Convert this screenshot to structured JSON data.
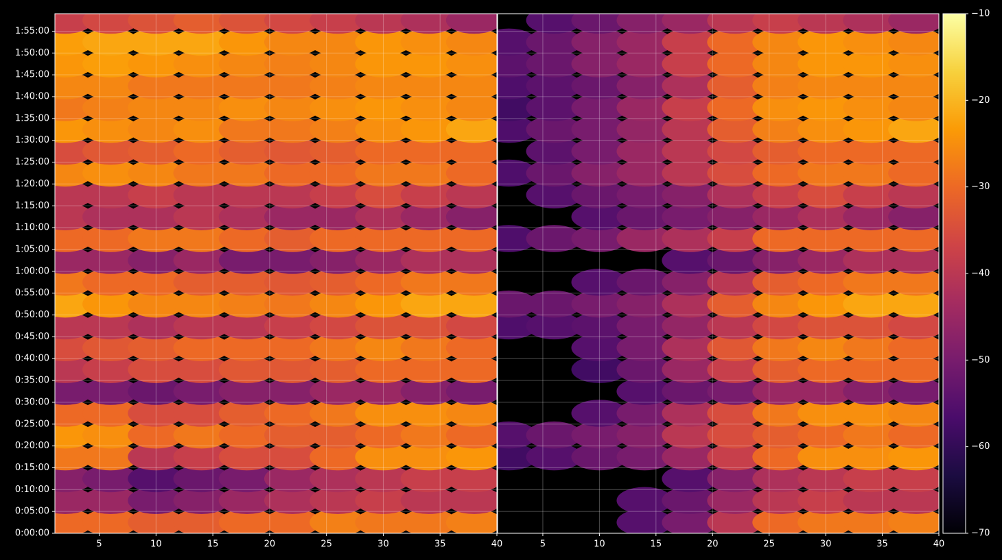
{
  "chart_data": [
    {
      "type": "heatmap",
      "colormap": "inferno",
      "grid": true,
      "clim": [
        -70,
        -10
      ],
      "cticks": [
        {
          "value": -10,
          "label": "−10"
        },
        {
          "value": -20,
          "label": "−20"
        },
        {
          "value": -30,
          "label": "−30"
        },
        {
          "value": -40,
          "label": "−40"
        },
        {
          "value": -50,
          "label": "−50"
        },
        {
          "value": -60,
          "label": "−60"
        },
        {
          "value": -70,
          "label": "−70"
        }
      ],
      "x": [
        2,
        6,
        10,
        14,
        18,
        22,
        26,
        30,
        34,
        38
      ],
      "y": [
        150,
        450,
        750,
        1050,
        1350,
        1650,
        1950,
        2250,
        2550,
        2850,
        3150,
        3450,
        3750,
        4050,
        4350,
        4650,
        4950,
        5250,
        5550,
        5850,
        6150,
        6450,
        6750,
        7050
      ],
      "xlim": [
        1.1,
        40
      ],
      "xticks": [
        5,
        10,
        15,
        20,
        25,
        30,
        35,
        40
      ],
      "ylim": [
        0,
        7140
      ],
      "yticks": [
        {
          "value": 0,
          "label": "0:00:00"
        },
        {
          "value": 300,
          "label": "0:05:00"
        },
        {
          "value": 600,
          "label": "0:10:00"
        },
        {
          "value": 900,
          "label": "0:15:00"
        },
        {
          "value": 1200,
          "label": "0:20:00"
        },
        {
          "value": 1500,
          "label": "0:25:00"
        },
        {
          "value": 1800,
          "label": "0:30:00"
        },
        {
          "value": 2100,
          "label": "0:35:00"
        },
        {
          "value": 2400,
          "label": "0:40:00"
        },
        {
          "value": 2700,
          "label": "0:45:00"
        },
        {
          "value": 3000,
          "label": "0:50:00"
        },
        {
          "value": 3300,
          "label": "0:55:00"
        },
        {
          "value": 3600,
          "label": "1:00:00"
        },
        {
          "value": 3900,
          "label": "1:05:00"
        },
        {
          "value": 4200,
          "label": "1:10:00"
        },
        {
          "value": 4500,
          "label": "1:15:00"
        },
        {
          "value": 4800,
          "label": "1:20:00"
        },
        {
          "value": 5100,
          "label": "1:25:00"
        },
        {
          "value": 5400,
          "label": "1:30:00"
        },
        {
          "value": 5700,
          "label": "1:35:00"
        },
        {
          "value": 6000,
          "label": "1:40:00"
        },
        {
          "value": 6300,
          "label": "1:45:00"
        },
        {
          "value": 6600,
          "label": "1:50:00"
        },
        {
          "value": 6900,
          "label": "1:55:00"
        }
      ],
      "values": [
        [
          -30,
          -30,
          -32,
          -32,
          -30,
          -30,
          -27,
          -28,
          -28,
          -27
        ],
        [
          -45,
          -45,
          -50,
          -48,
          -45,
          -42,
          -40,
          -38,
          -40,
          -40
        ],
        [
          -48,
          -50,
          -55,
          -52,
          -50,
          -45,
          -42,
          -40,
          -38,
          -38
        ],
        [
          -28,
          -28,
          -40,
          -38,
          -35,
          -35,
          -30,
          -25,
          -25,
          -24
        ],
        [
          -24,
          -25,
          -30,
          -28,
          -30,
          -32,
          -32,
          -30,
          -28,
          -30
        ],
        [
          -30,
          -30,
          -35,
          -35,
          -32,
          -30,
          -28,
          -25,
          -25,
          -26
        ],
        [
          -50,
          -50,
          -52,
          -50,
          -48,
          -48,
          -45,
          -45,
          -48,
          -50
        ],
        [
          -40,
          -38,
          -35,
          -35,
          -33,
          -33,
          -32,
          -30,
          -30,
          -30
        ],
        [
          -35,
          -33,
          -32,
          -30,
          -30,
          -30,
          -28,
          -26,
          -28,
          -30
        ],
        [
          -40,
          -40,
          -42,
          -40,
          -40,
          -38,
          -36,
          -34,
          -34,
          -36
        ],
        [
          -22,
          -24,
          -26,
          -26,
          -27,
          -28,
          -26,
          -24,
          -22,
          -22
        ],
        [
          -28,
          -30,
          -30,
          -32,
          -32,
          -33,
          -32,
          -30,
          -28,
          -28
        ],
        [
          -45,
          -45,
          -48,
          -45,
          -50,
          -50,
          -48,
          -45,
          -42,
          -42
        ],
        [
          -30,
          -30,
          -28,
          -28,
          -30,
          -32,
          -30,
          -30,
          -30,
          -30
        ],
        [
          -40,
          -42,
          -42,
          -40,
          -42,
          -45,
          -45,
          -42,
          -45,
          -48
        ],
        [
          -40,
          -40,
          -38,
          -40,
          -40,
          -40,
          -38,
          -35,
          -38,
          -40
        ],
        [
          -26,
          -25,
          -26,
          -28,
          -28,
          -30,
          -30,
          -28,
          -28,
          -30
        ],
        [
          -35,
          -33,
          -32,
          -30,
          -32,
          -33,
          -32,
          -30,
          -30,
          -30
        ],
        [
          -24,
          -25,
          -26,
          -25,
          -28,
          -28,
          -27,
          -25,
          -24,
          -22
        ],
        [
          -28,
          -27,
          -26,
          -26,
          -25,
          -26,
          -25,
          -24,
          -25,
          -26
        ],
        [
          -26,
          -26,
          -28,
          -28,
          -28,
          -28,
          -27,
          -26,
          -26,
          -26
        ],
        [
          -24,
          -23,
          -24,
          -25,
          -26,
          -27,
          -26,
          -24,
          -24,
          -25
        ],
        [
          -23,
          -22,
          -22,
          -22,
          -24,
          -26,
          -26,
          -24,
          -25,
          -26
        ],
        [
          -38,
          -36,
          -34,
          -32,
          -34,
          -36,
          -38,
          -40,
          -42,
          -45
        ]
      ]
    },
    {
      "type": "heatmap",
      "grid": true,
      "x": [
        2,
        6,
        10,
        14,
        18,
        22,
        26,
        30,
        34,
        38
      ],
      "xlim": [
        1,
        40
      ],
      "xticks": [
        5,
        10,
        15,
        20,
        25,
        30,
        35,
        40
      ],
      "values": [
        [
          null,
          null,
          null,
          -55,
          -50,
          -40,
          -30,
          -28,
          -28,
          -27
        ],
        [
          null,
          null,
          null,
          -55,
          -52,
          -45,
          -40,
          -38,
          -40,
          -40
        ],
        [
          null,
          null,
          null,
          null,
          -55,
          -48,
          -42,
          -40,
          -38,
          -38
        ],
        [
          -58,
          -55,
          -52,
          -50,
          -45,
          -38,
          -30,
          -25,
          -25,
          -24
        ],
        [
          -55,
          -52,
          -50,
          -48,
          -40,
          -35,
          -32,
          -30,
          -28,
          -30
        ],
        [
          null,
          null,
          -55,
          -50,
          -42,
          -35,
          -28,
          -25,
          -25,
          -26
        ],
        [
          null,
          null,
          null,
          -55,
          -52,
          -50,
          -45,
          -45,
          -48,
          -50
        ],
        [
          null,
          null,
          -58,
          -52,
          -45,
          -38,
          -32,
          -30,
          -30,
          -30
        ],
        [
          null,
          null,
          -55,
          -50,
          -42,
          -33,
          -28,
          -26,
          -28,
          -30
        ],
        [
          -56,
          -55,
          -54,
          -50,
          -46,
          -40,
          -36,
          -34,
          -34,
          -36
        ],
        [
          -52,
          -52,
          -50,
          -48,
          -42,
          -32,
          -26,
          -24,
          -22,
          -22
        ],
        [
          null,
          null,
          -55,
          -52,
          -48,
          -40,
          -32,
          -30,
          -28,
          -28
        ],
        [
          null,
          null,
          null,
          null,
          -55,
          -52,
          -48,
          -45,
          -42,
          -42
        ],
        [
          -56,
          -52,
          -50,
          -45,
          -42,
          -38,
          -30,
          -30,
          -30,
          -30
        ],
        [
          null,
          null,
          -55,
          -52,
          -50,
          -48,
          -45,
          -42,
          -45,
          -48
        ],
        [
          null,
          -55,
          -52,
          -50,
          -48,
          -42,
          -38,
          -35,
          -38,
          -40
        ],
        [
          -56,
          -52,
          -48,
          -45,
          -40,
          -35,
          -30,
          -28,
          -28,
          -30
        ],
        [
          null,
          -54,
          -50,
          -45,
          -40,
          -36,
          -32,
          -30,
          -30,
          -30
        ],
        [
          -56,
          -52,
          -50,
          -46,
          -40,
          -32,
          -27,
          -25,
          -24,
          -22
        ],
        [
          -58,
          -54,
          -50,
          -45,
          -38,
          -30,
          -25,
          -24,
          -25,
          -26
        ],
        [
          -56,
          -54,
          -52,
          -48,
          -42,
          -32,
          -27,
          -26,
          -26,
          -26
        ],
        [
          -54,
          -52,
          -48,
          -45,
          -38,
          -30,
          -26,
          -24,
          -24,
          -25
        ],
        [
          -55,
          -52,
          -48,
          -45,
          -38,
          -30,
          -26,
          -24,
          -25,
          -26
        ],
        [
          null,
          -55,
          -52,
          -48,
          -45,
          -40,
          -38,
          -40,
          -42,
          -45
        ]
      ]
    }
  ]
}
